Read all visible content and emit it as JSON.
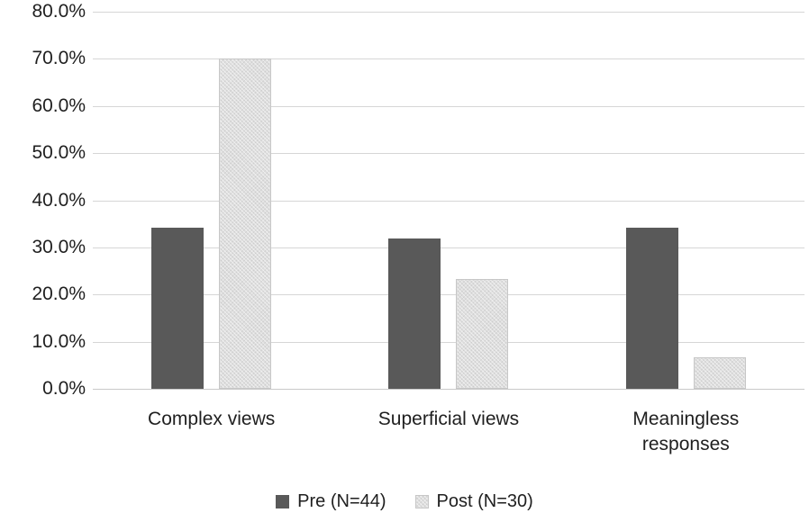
{
  "chart_data": {
    "type": "bar",
    "title": "",
    "xlabel": "",
    "ylabel": "",
    "categories": [
      "Complex views",
      "Superficial views",
      "Meaningless responses"
    ],
    "series": [
      {
        "name": "Pre (N=44)",
        "style": "solid",
        "color": "#595959",
        "values": [
          34.1,
          31.8,
          34.1
        ]
      },
      {
        "name": "Post (N=30)",
        "style": "pattern",
        "color": "#dedede",
        "values": [
          70.0,
          23.3,
          6.7
        ]
      }
    ],
    "ylim": [
      0,
      80
    ],
    "ytick_labels_top_to_bottom": [
      "80.0%",
      "70.0%",
      "60.0%",
      "50.0%",
      "40.0%",
      "30.0%",
      "20.0%",
      "10.0%",
      "0.0%"
    ],
    "grid": true,
    "legend_position": "bottom"
  },
  "colors": {
    "bar_dark": "#595959",
    "bar_light": "#dedede",
    "gridline": "#d6d6d6",
    "text": "#1f1f1f",
    "background": "#ffffff"
  }
}
